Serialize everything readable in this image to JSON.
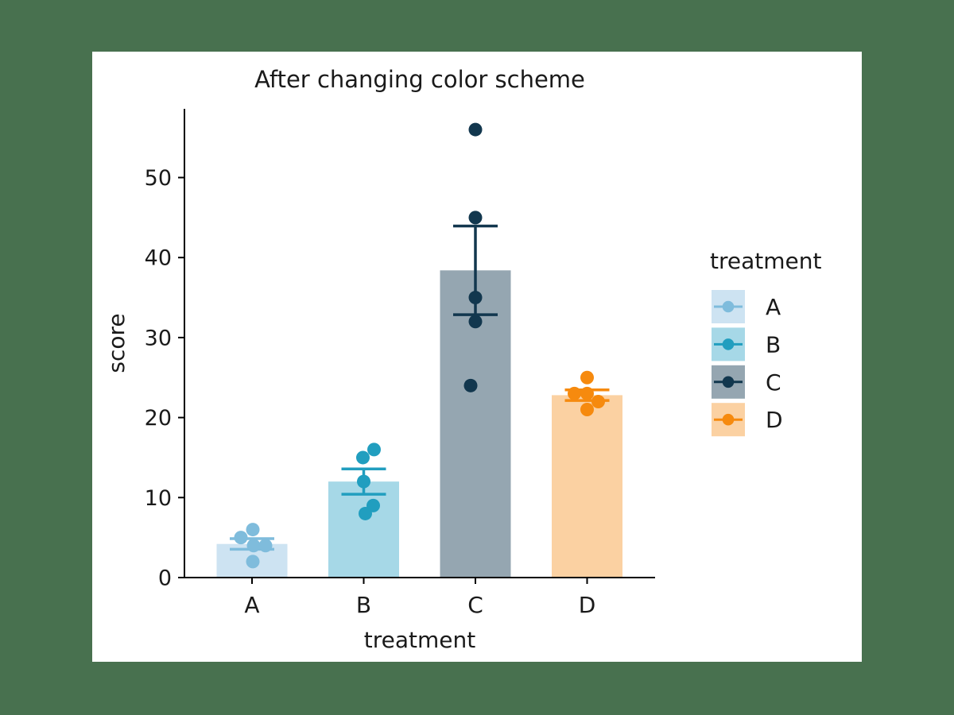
{
  "background_color": "#48714F",
  "figure_background": "#FFFFFF",
  "chart_data": {
    "type": "bar",
    "title": "After changing color scheme",
    "xlabel": "treatment",
    "ylabel": "score",
    "categories": [
      "A",
      "B",
      "C",
      "D"
    ],
    "series": [
      {
        "name": "A",
        "points": [
          6,
          5,
          4,
          4,
          2
        ],
        "mean": 4.2,
        "se": 0.66,
        "point_dx": [
          1,
          -14,
          2,
          17,
          1
        ],
        "point_color": "#7FBCDC",
        "bar_color": "#CDE3F2"
      },
      {
        "name": "B",
        "points": [
          16,
          15,
          12,
          9,
          8
        ],
        "mean": 12.0,
        "se": 1.58,
        "point_dx": [
          13,
          -1,
          0,
          12,
          2
        ],
        "point_color": "#219EBF",
        "bar_color": "#A6D8E7"
      },
      {
        "name": "C",
        "points": [
          56,
          45,
          35,
          32,
          24
        ],
        "mean": 38.4,
        "se": 5.54,
        "point_dx": [
          0,
          0,
          0,
          0,
          -6
        ],
        "point_color": "#12374E",
        "bar_color": "#95A6B1"
      },
      {
        "name": "D",
        "points": [
          25,
          23,
          23,
          22,
          21
        ],
        "mean": 22.8,
        "se": 0.66,
        "point_dx": [
          0,
          -16,
          0,
          14,
          0
        ],
        "point_color": "#F68A0E",
        "bar_color": "#FBD1A2"
      }
    ],
    "error_bar": "standard error (mean ± se) with caps",
    "yticks": [
      0,
      10,
      20,
      30,
      40,
      50
    ],
    "ylim": [
      0,
      58.6
    ],
    "grid": false,
    "legend": {
      "title": "treatment",
      "entries": [
        "A",
        "B",
        "C",
        "D"
      ],
      "position": "right outside"
    }
  },
  "colors": {
    "text": "#1A1A1A",
    "axis": "#000000"
  }
}
